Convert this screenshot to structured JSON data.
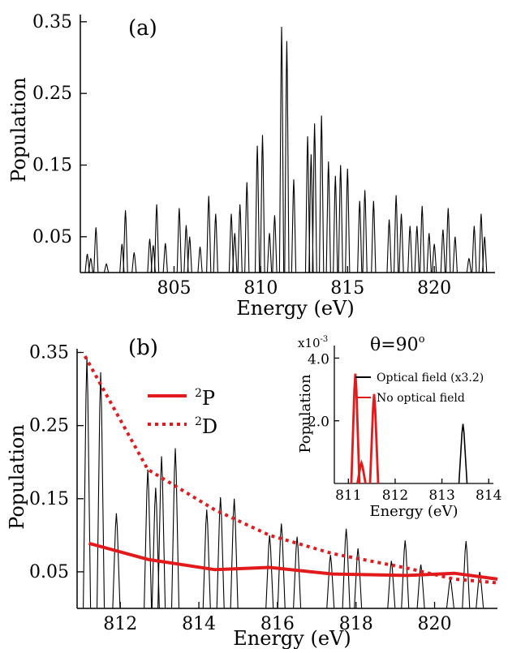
{
  "colors": {
    "spectrum": "#000000",
    "curve": "#e31a1c",
    "inset_optical": "#000000",
    "inset_no_optical": "#e31a1c"
  },
  "chart_data": [
    {
      "type": "line",
      "panel_label": "(a)",
      "xlabel": "Energy (eV)",
      "ylabel": "Population",
      "xlim": [
        799.6,
        823.5
      ],
      "ylim": [
        0,
        0.36
      ],
      "x_ticks": [
        "805",
        "810",
        "815",
        "820"
      ],
      "y_ticks": [
        "0.05",
        "0.15",
        "0.25",
        "0.35"
      ],
      "x_tick_values": [
        805,
        810,
        815,
        820
      ],
      "y_tick_values": [
        0.05,
        0.15,
        0.25,
        0.35
      ],
      "grid": false,
      "series": [
        {
          "peaks": [
            [
              800.0,
              0.026
            ],
            [
              800.2,
              0.02
            ],
            [
              800.5,
              0.063
            ],
            [
              801.1,
              0.012
            ],
            [
              802.0,
              0.04
            ],
            [
              802.2,
              0.087
            ],
            [
              802.7,
              0.028
            ],
            [
              803.6,
              0.047
            ],
            [
              803.8,
              0.038
            ],
            [
              804.0,
              0.095
            ],
            [
              804.5,
              0.041
            ],
            [
              805.3,
              0.09
            ],
            [
              805.7,
              0.066
            ],
            [
              805.9,
              0.05
            ],
            [
              806.5,
              0.036
            ],
            [
              807.0,
              0.107
            ],
            [
              807.4,
              0.082
            ],
            [
              808.3,
              0.082
            ],
            [
              808.5,
              0.055
            ],
            [
              808.8,
              0.095
            ],
            [
              809.2,
              0.126
            ],
            [
              809.8,
              0.177
            ],
            [
              810.1,
              0.192
            ],
            [
              810.5,
              0.055
            ],
            [
              810.8,
              0.08
            ],
            [
              811.2,
              0.343
            ],
            [
              811.5,
              0.323
            ],
            [
              811.9,
              0.13
            ],
            [
              812.7,
              0.19
            ],
            [
              812.9,
              0.165
            ],
            [
              813.1,
              0.208
            ],
            [
              813.5,
              0.219
            ],
            [
              813.9,
              0.155
            ],
            [
              814.3,
              0.135
            ],
            [
              814.6,
              0.15
            ],
            [
              815.0,
              0.145
            ],
            [
              815.7,
              0.1
            ],
            [
              816.0,
              0.115
            ],
            [
              816.5,
              0.1
            ],
            [
              817.4,
              0.074
            ],
            [
              817.8,
              0.108
            ],
            [
              818.1,
              0.082
            ],
            [
              818.6,
              0.065
            ],
            [
              819.0,
              0.065
            ],
            [
              819.3,
              0.093
            ],
            [
              819.7,
              0.055
            ],
            [
              820.0,
              0.04
            ],
            [
              820.5,
              0.06
            ],
            [
              820.8,
              0.09
            ],
            [
              821.2,
              0.05
            ],
            [
              822.0,
              0.02
            ],
            [
              822.3,
              0.065
            ],
            [
              822.7,
              0.082
            ],
            [
              822.9,
              0.05
            ]
          ]
        }
      ]
    },
    {
      "type": "line",
      "panel_label": "(b)",
      "xlabel": "Energy (eV)",
      "ylabel": "Population",
      "xlim": [
        810.9,
        821.6
      ],
      "ylim": [
        0,
        0.355
      ],
      "x_ticks": [
        "812",
        "814",
        "816",
        "818",
        "820"
      ],
      "y_ticks": [
        "0.05",
        "0.15",
        "0.25",
        "0.35"
      ],
      "x_tick_values": [
        812,
        814,
        816,
        818,
        820
      ],
      "y_tick_values": [
        0.05,
        0.15,
        0.25,
        0.35
      ],
      "grid": false,
      "legend": [
        {
          "label": "2",
          "suffix": "P",
          "style": "solid"
        },
        {
          "label": "2",
          "suffix": "D",
          "style": "dotted"
        }
      ],
      "legend_position": "upper-left",
      "series": [
        {
          "style": "peaks",
          "peaks": [
            [
              811.15,
              0.343
            ],
            [
              811.5,
              0.323
            ],
            [
              811.9,
              0.13
            ],
            [
              812.7,
              0.19
            ],
            [
              812.9,
              0.165
            ],
            [
              813.05,
              0.208
            ],
            [
              813.4,
              0.219
            ],
            [
              814.2,
              0.135
            ],
            [
              814.55,
              0.152
            ],
            [
              814.9,
              0.15
            ],
            [
              815.8,
              0.1
            ],
            [
              816.1,
              0.116
            ],
            [
              816.5,
              0.098
            ],
            [
              817.35,
              0.073
            ],
            [
              817.75,
              0.109
            ],
            [
              818.05,
              0.082
            ],
            [
              818.9,
              0.065
            ],
            [
              819.25,
              0.093
            ],
            [
              819.65,
              0.06
            ],
            [
              820.4,
              0.04
            ],
            [
              820.8,
              0.092
            ],
            [
              821.15,
              0.05
            ]
          ]
        },
        {
          "style": "solid",
          "x": [
            811.2,
            812.7,
            814.4,
            815.8,
            817.4,
            819.3,
            820.5,
            821.6
          ],
          "y": [
            0.089,
            0.067,
            0.053,
            0.056,
            0.047,
            0.045,
            0.048,
            0.04
          ]
        },
        {
          "style": "dotted",
          "x": [
            811.1,
            812.7,
            814.4,
            815.8,
            817.4,
            819.3,
            820.5,
            821.6
          ],
          "y": [
            0.345,
            0.19,
            0.135,
            0.1,
            0.075,
            0.055,
            0.04,
            0.035
          ]
        }
      ]
    },
    {
      "type": "line",
      "inset": true,
      "title_prefix": "θ=90",
      "title_degree": "o",
      "scale_prefix": "x10",
      "scale_exponent": "-3",
      "xlabel": "Energy (eV)",
      "ylabel": "Population",
      "xlim": [
        810.7,
        814.1
      ],
      "ylim": [
        0,
        4.4
      ],
      "x_ticks": [
        "811",
        "812",
        "813",
        "814"
      ],
      "y_ticks": [
        "2.0",
        "4.0"
      ],
      "x_tick_values": [
        811,
        812,
        813,
        814
      ],
      "y_tick_values": [
        2.0,
        4.0
      ],
      "series": [
        {
          "name": "Optical field (x3.2)",
          "peaks": [
            [
              811.15,
              3.42
            ],
            [
              811.28,
              0.6
            ],
            [
              811.55,
              2.75
            ],
            [
              813.45,
              1.9
            ]
          ]
        },
        {
          "name": "No optical field",
          "peaks": [
            [
              811.15,
              3.5
            ],
            [
              811.28,
              0.65
            ],
            [
              811.55,
              2.85
            ]
          ]
        }
      ]
    }
  ]
}
